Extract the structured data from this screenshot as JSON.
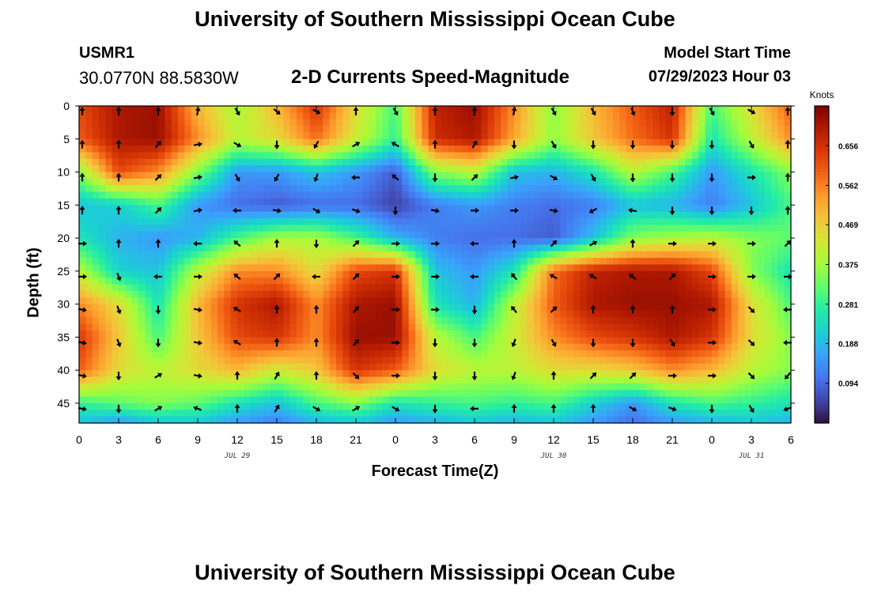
{
  "header": {
    "title": "University of Southern Mississippi Ocean Cube",
    "station_id": "USMR1",
    "coords": "30.0770N  88.5830W",
    "subtitle": "2-D Currents Speed-Magnitude",
    "model_label": "Model Start Time",
    "model_time": "07/29/2023 Hour 03"
  },
  "footer": {
    "title": "University of Southern Mississippi Ocean Cube"
  },
  "chart_data": {
    "type": "heatmap",
    "title": "2-D Currents Speed-Magnitude",
    "xlabel": "Forecast Time(Z)",
    "ylabel": "Depth (ft)",
    "x_tick_labels": [
      "0",
      "3",
      "6",
      "9",
      "12",
      "15",
      "18",
      "21",
      "0",
      "3",
      "6",
      "9",
      "12",
      "15",
      "18",
      "21",
      "0",
      "3",
      "6"
    ],
    "date_labels": [
      {
        "text": "JUL 29",
        "at_index": 4
      },
      {
        "text": "JUL 30",
        "at_index": 12
      },
      {
        "text": "JUL 31",
        "at_index": 17
      }
    ],
    "y_ticks": [
      0,
      5,
      10,
      15,
      20,
      25,
      30,
      35,
      40,
      45
    ],
    "ylim": [
      0,
      48
    ],
    "colorbar": {
      "unit": "Knots",
      "range": [
        0,
        0.75
      ],
      "ticks": [
        "0.094",
        "0.188",
        "0.281",
        "0.375",
        "0.469",
        "0.562",
        "0.656"
      ],
      "tick_values": [
        0.094,
        0.188,
        0.281,
        0.375,
        0.469,
        0.562,
        0.656
      ],
      "colors": [
        "#30123b",
        "#4145ab",
        "#4675ed",
        "#39a2fc",
        "#1bcfd4",
        "#24eca6",
        "#61fc6c",
        "#a4fc3b",
        "#d1e834",
        "#f3c63a",
        "#fe9b2d",
        "#f36315",
        "#d93806",
        "#b11901",
        "#7a0403"
      ]
    },
    "speed_grid": {
      "depths_ft": [
        0,
        5,
        10,
        15,
        20,
        25,
        30,
        35,
        40,
        45,
        48
      ],
      "rows": [
        [
          0.62,
          0.7,
          0.72,
          0.5,
          0.38,
          0.5,
          0.65,
          0.45,
          0.3,
          0.68,
          0.72,
          0.55,
          0.35,
          0.5,
          0.6,
          0.68,
          0.3,
          0.45,
          0.6
        ],
        [
          0.6,
          0.7,
          0.72,
          0.55,
          0.4,
          0.45,
          0.58,
          0.42,
          0.28,
          0.66,
          0.7,
          0.52,
          0.36,
          0.48,
          0.58,
          0.65,
          0.25,
          0.4,
          0.55
        ],
        [
          0.35,
          0.62,
          0.55,
          0.35,
          0.15,
          0.15,
          0.2,
          0.15,
          0.08,
          0.35,
          0.4,
          0.2,
          0.18,
          0.25,
          0.4,
          0.3,
          0.15,
          0.25,
          0.35
        ],
        [
          0.2,
          0.22,
          0.3,
          0.15,
          0.1,
          0.08,
          0.1,
          0.1,
          0.05,
          0.12,
          0.15,
          0.12,
          0.1,
          0.12,
          0.2,
          0.18,
          0.12,
          0.2,
          0.3
        ],
        [
          0.25,
          0.18,
          0.15,
          0.18,
          0.3,
          0.38,
          0.38,
          0.3,
          0.18,
          0.12,
          0.1,
          0.1,
          0.08,
          0.2,
          0.35,
          0.38,
          0.4,
          0.35,
          0.32
        ],
        [
          0.4,
          0.22,
          0.2,
          0.4,
          0.55,
          0.55,
          0.45,
          0.62,
          0.65,
          0.2,
          0.15,
          0.25,
          0.58,
          0.68,
          0.7,
          0.7,
          0.62,
          0.35,
          0.25
        ],
        [
          0.55,
          0.45,
          0.25,
          0.5,
          0.65,
          0.7,
          0.55,
          0.7,
          0.72,
          0.25,
          0.18,
          0.4,
          0.6,
          0.7,
          0.72,
          0.72,
          0.7,
          0.45,
          0.3
        ],
        [
          0.65,
          0.48,
          0.3,
          0.48,
          0.62,
          0.65,
          0.55,
          0.72,
          0.72,
          0.4,
          0.3,
          0.42,
          0.55,
          0.62,
          0.65,
          0.7,
          0.65,
          0.45,
          0.35
        ],
        [
          0.6,
          0.45,
          0.4,
          0.45,
          0.5,
          0.42,
          0.48,
          0.65,
          0.6,
          0.45,
          0.4,
          0.4,
          0.45,
          0.45,
          0.48,
          0.55,
          0.5,
          0.4,
          0.35
        ],
        [
          0.28,
          0.32,
          0.35,
          0.32,
          0.25,
          0.2,
          0.3,
          0.35,
          0.25,
          0.28,
          0.3,
          0.28,
          0.3,
          0.22,
          0.15,
          0.25,
          0.3,
          0.28,
          0.25
        ],
        [
          0.2,
          0.15,
          0.2,
          0.2,
          0.15,
          0.12,
          0.18,
          0.2,
          0.15,
          0.18,
          0.2,
          0.18,
          0.2,
          0.15,
          0.1,
          0.15,
          0.18,
          0.2,
          0.18
        ]
      ]
    },
    "arrow_directions_deg": {
      "depths_ft": [
        0,
        5,
        10,
        15,
        20,
        25,
        30,
        35,
        40,
        45
      ],
      "rows": [
        [
          0,
          0,
          0,
          10,
          150,
          130,
          120,
          0,
          150,
          0,
          0,
          10,
          150,
          150,
          160,
          180,
          150,
          120,
          0
        ],
        [
          0,
          0,
          40,
          80,
          120,
          180,
          210,
          60,
          300,
          0,
          30,
          180,
          150,
          180,
          180,
          180,
          180,
          150,
          0
        ],
        [
          0,
          0,
          45,
          80,
          150,
          210,
          200,
          270,
          310,
          180,
          45,
          80,
          120,
          150,
          180,
          180,
          180,
          90,
          0
        ],
        [
          0,
          0,
          45,
          80,
          270,
          100,
          120,
          110,
          180,
          100,
          90,
          90,
          100,
          240,
          280,
          180,
          180,
          180,
          0
        ],
        [
          90,
          0,
          0,
          270,
          310,
          0,
          180,
          45,
          90,
          90,
          270,
          0,
          45,
          60,
          0,
          90,
          90,
          90,
          45
        ],
        [
          90,
          160,
          270,
          90,
          310,
          45,
          270,
          45,
          90,
          90,
          270,
          320,
          300,
          300,
          310,
          45,
          90,
          90,
          90
        ],
        [
          100,
          160,
          180,
          100,
          300,
          0,
          0,
          40,
          90,
          90,
          180,
          320,
          45,
          0,
          0,
          0,
          90,
          135,
          270
        ],
        [
          100,
          160,
          180,
          100,
          300,
          0,
          0,
          40,
          90,
          180,
          180,
          200,
          150,
          180,
          180,
          150,
          90,
          135,
          270
        ],
        [
          100,
          180,
          60,
          100,
          0,
          30,
          0,
          135,
          90,
          180,
          180,
          200,
          0,
          45,
          45,
          90,
          90,
          135,
          220
        ],
        [
          100,
          180,
          60,
          290,
          0,
          30,
          120,
          60,
          120,
          180,
          270,
          0,
          0,
          0,
          120,
          110,
          180,
          150,
          250
        ]
      ]
    }
  }
}
